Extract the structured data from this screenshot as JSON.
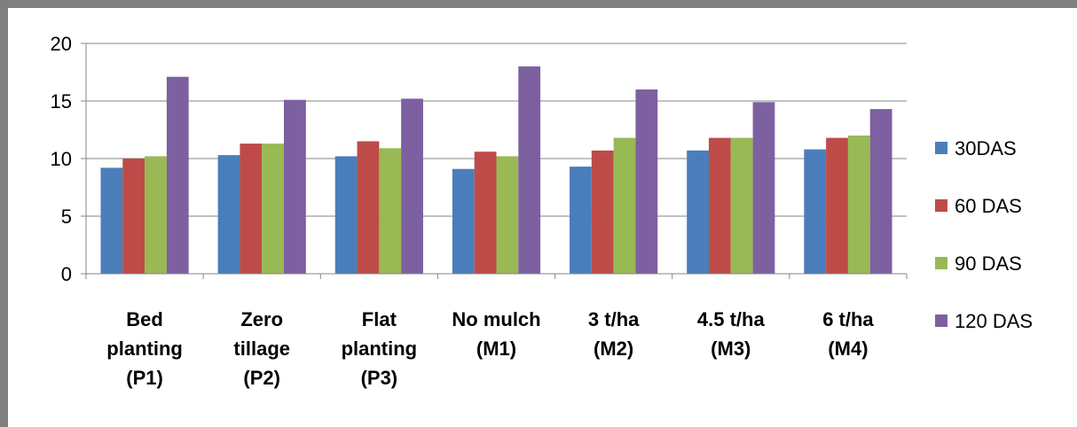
{
  "chart_data": {
    "type": "bar",
    "categories": [
      [
        "Bed",
        "planting",
        "(P1)"
      ],
      [
        "Zero",
        "tillage",
        "(P2)"
      ],
      [
        "Flat",
        "planting",
        "(P3)"
      ],
      [
        "No mulch",
        "(M1)"
      ],
      [
        "3 t/ha",
        "(M2)"
      ],
      [
        "4.5 t/ha",
        "(M3)"
      ],
      [
        "6 t/ha",
        "(M4)"
      ]
    ],
    "series": [
      {
        "name": "30DAS",
        "color": "#4a7ebb",
        "values": [
          9.2,
          10.3,
          10.2,
          9.1,
          9.3,
          10.7,
          10.8
        ]
      },
      {
        "name": "60 DAS",
        "color": "#be4b48",
        "values": [
          10.0,
          11.3,
          11.5,
          10.6,
          10.7,
          11.8,
          11.8
        ]
      },
      {
        "name": "90 DAS",
        "color": "#98b954",
        "values": [
          10.2,
          11.3,
          10.9,
          10.2,
          11.8,
          11.8,
          12.0
        ]
      },
      {
        "name": "120 DAS",
        "color": "#7d60a0",
        "values": [
          17.1,
          15.1,
          15.2,
          18.0,
          16.0,
          14.9,
          14.3
        ]
      }
    ],
    "ylim": [
      0,
      20
    ],
    "yticks": [
      "0",
      "5",
      "10",
      "15",
      "20"
    ],
    "grid": true,
    "legend_position": "right",
    "title": "",
    "xlabel": "",
    "ylabel": ""
  }
}
